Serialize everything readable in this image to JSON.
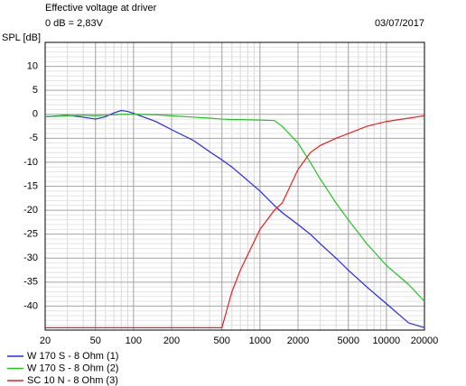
{
  "chart_data": {
    "type": "line",
    "title": "Effective voltage at driver",
    "subtitle": "0 dB = 2,83V",
    "date": "03/07/2017",
    "y_label": "SPL [dB]",
    "x_log": true,
    "grid": true,
    "xlim": [
      20,
      20000
    ],
    "ylim": [
      -45,
      15
    ],
    "xticks": [
      20,
      50,
      100,
      200,
      500,
      1000,
      2000,
      5000,
      10000,
      20000
    ],
    "yticks": [
      10,
      5,
      0,
      -5,
      -10,
      -15,
      -20,
      -25,
      -30,
      -35,
      -40
    ],
    "x": [
      20,
      30,
      40,
      50,
      60,
      70,
      80,
      90,
      100,
      150,
      200,
      300,
      400,
      500,
      600,
      700,
      1000,
      1300,
      1500,
      2000,
      2500,
      3000,
      4000,
      5000,
      7000,
      10000,
      15000,
      20000
    ],
    "series": [
      {
        "name": "W 170 S - 8 Ohm (1)",
        "color": "#2626ee",
        "values": [
          -0.5,
          -0.2,
          -0.6,
          -1,
          -0.5,
          0.3,
          0.8,
          0.6,
          0.2,
          -1.5,
          -3.2,
          -5.5,
          -7.8,
          -9.5,
          -11,
          -12.5,
          -16,
          -19,
          -20.5,
          -23,
          -25,
          -27,
          -30,
          -32.5,
          -36,
          -39.5,
          -43.5,
          -44.5
        ]
      },
      {
        "name": "W 170 S - 8 Ohm (2)",
        "color": "#22c422",
        "values": [
          -0.5,
          -0.3,
          -0.2,
          -0.3,
          -0.2,
          -0.1,
          0,
          0,
          0,
          -0.1,
          -0.3,
          -0.6,
          -0.8,
          -1,
          -1.1,
          -1.1,
          -1.2,
          -1.3,
          -2.5,
          -6,
          -10,
          -13.5,
          -18.5,
          -22,
          -27,
          -31.5,
          -35.5,
          -39
        ]
      },
      {
        "name": "SC 10 N - 8 Ohm (3)",
        "color": "#e82020",
        "values": [
          -44.5,
          -44.5,
          -44.5,
          -44.5,
          -44.5,
          -44.5,
          -44.5,
          -44.5,
          -44.5,
          -44.5,
          -44.5,
          -44.5,
          -44.5,
          -44.5,
          -37,
          -32.5,
          -24,
          -20,
          -18.5,
          -11.5,
          -8,
          -6.5,
          -5,
          -4,
          -2.5,
          -1.5,
          -0.8,
          -0.3
        ]
      }
    ]
  }
}
